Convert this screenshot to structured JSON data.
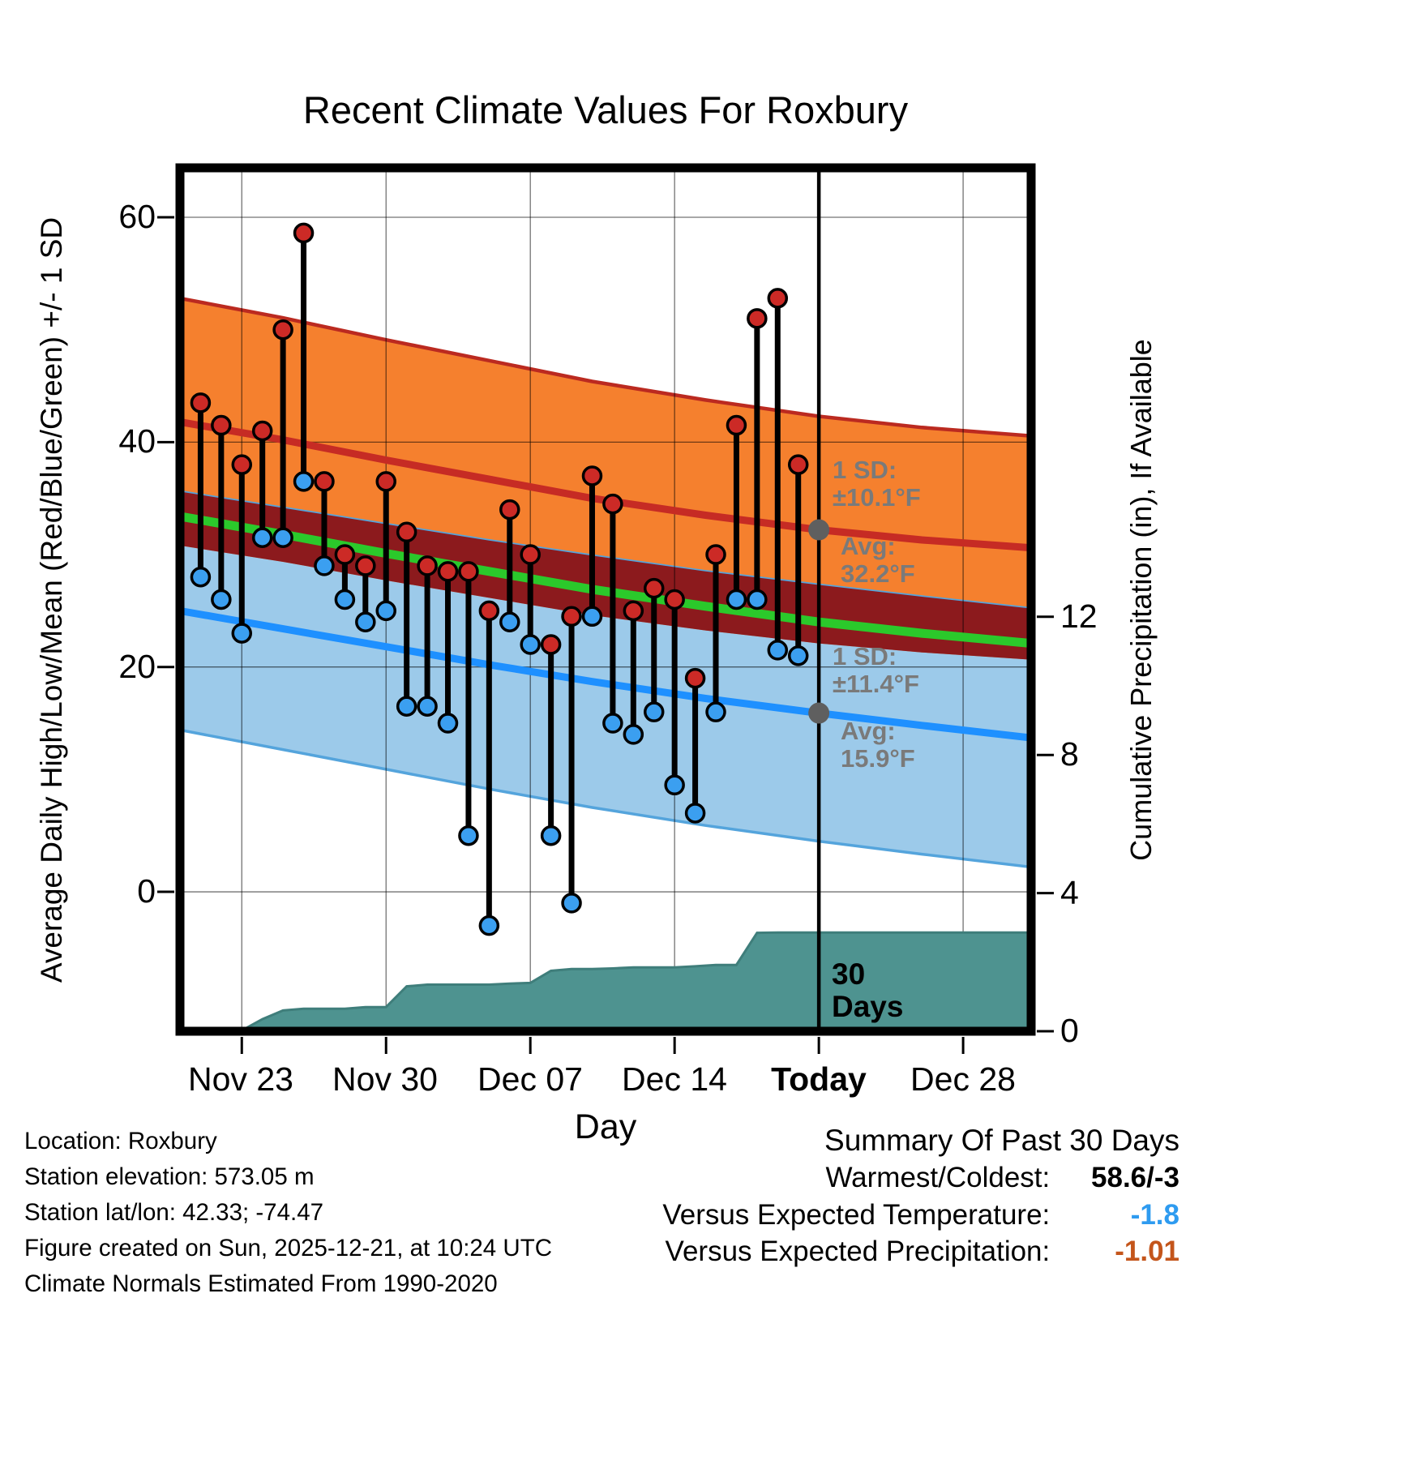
{
  "chart_data": {
    "type": "line",
    "title": "Recent Climate Values For Roxbury",
    "xlabel": "Day",
    "ylabel_left": "Average Daily High/Low/Mean (Red/Blue/Green) +/- 1 SD",
    "ylabel_right": "Cumulative Precipitation (in), If Available",
    "x_range_days": [
      -1,
      40.3
    ],
    "temp_range": [
      -12.4,
      64.4
    ],
    "precip_range": [
      0,
      25
    ],
    "temp_ticks": [
      0,
      20,
      40,
      60
    ],
    "precip_ticks": [
      0,
      4,
      8,
      12
    ],
    "x_ticks": [
      {
        "day": 2,
        "label": "Nov 23",
        "bold": false
      },
      {
        "day": 9,
        "label": "Nov 30",
        "bold": false
      },
      {
        "day": 16,
        "label": "Dec 07",
        "bold": false
      },
      {
        "day": 23,
        "label": "Dec 14",
        "bold": false
      },
      {
        "day": 30,
        "label": "Today",
        "bold": true
      },
      {
        "day": 37,
        "label": "Dec 28",
        "bold": false
      }
    ],
    "today_day": 30,
    "daily": {
      "dates": [
        "Nov 21",
        "Nov 22",
        "Nov 23",
        "Nov 24",
        "Nov 25",
        "Nov 26",
        "Nov 27",
        "Nov 28",
        "Nov 29",
        "Nov 30",
        "Dec 01",
        "Dec 02",
        "Dec 03",
        "Dec 04",
        "Dec 05",
        "Dec 06",
        "Dec 07",
        "Dec 08",
        "Dec 09",
        "Dec 10",
        "Dec 11",
        "Dec 12",
        "Dec 13",
        "Dec 14",
        "Dec 15",
        "Dec 16",
        "Dec 17",
        "Dec 18",
        "Dec 19",
        "Dec 20"
      ],
      "high": [
        43.5,
        41.5,
        38,
        41,
        50,
        58.6,
        36.5,
        30,
        29,
        36.5,
        32,
        29,
        28.5,
        28.5,
        25,
        34,
        30,
        22,
        24.5,
        37,
        34.5,
        25,
        27,
        26,
        19,
        30,
        41.5,
        51,
        52.8,
        38
      ],
      "low": [
        28,
        26,
        23,
        31.5,
        31.5,
        36.5,
        29,
        26,
        24,
        25,
        16.5,
        16.5,
        15,
        5,
        -3,
        24,
        22,
        5,
        -1,
        24.5,
        15,
        14,
        16,
        9.5,
        7,
        16,
        26,
        26,
        21.5,
        21
      ]
    },
    "normals": {
      "x_days": [
        -1,
        4,
        9,
        14,
        19,
        24.5,
        30,
        35,
        40.3
      ],
      "avg_high": [
        41.8,
        40.2,
        38.4,
        36.7,
        35.0,
        33.5,
        32.2,
        31.3,
        30.6
      ],
      "sd_high": [
        11.0,
        10.85,
        10.7,
        10.55,
        10.4,
        10.25,
        10.1,
        10.0,
        9.95
      ],
      "avg_low": [
        25.0,
        23.4,
        21.8,
        20.2,
        18.7,
        17.2,
        15.9,
        14.8,
        13.7
      ],
      "sd_low": [
        10.6,
        10.75,
        10.9,
        11.05,
        11.2,
        11.3,
        11.4,
        11.45,
        11.5
      ],
      "mean": [
        33.4,
        31.8,
        30.1,
        28.5,
        26.9,
        25.4,
        24.0,
        23.0,
        22.1
      ],
      "today_avg_high": 32.2,
      "today_sd_high": 10.1,
      "today_avg_low": 15.9,
      "today_sd_low": 11.4
    },
    "precip_cumulative": {
      "x_days": [
        0,
        1,
        2,
        3,
        4,
        5,
        6,
        7,
        8,
        9,
        10,
        11,
        12,
        13,
        14,
        15,
        16,
        17,
        18,
        19,
        20,
        21,
        22,
        23,
        24,
        25,
        26,
        27,
        28,
        29
      ],
      "values_in": [
        0,
        0,
        0.02,
        0.35,
        0.6,
        0.65,
        0.65,
        0.65,
        0.7,
        0.7,
        1.3,
        1.35,
        1.35,
        1.35,
        1.35,
        1.38,
        1.4,
        1.75,
        1.8,
        1.8,
        1.82,
        1.85,
        1.85,
        1.85,
        1.88,
        1.92,
        1.92,
        2.85,
        2.86,
        2.86
      ],
      "extends_to_day": 40.3
    },
    "annotations": {
      "high": {
        "sd_label": "1 SD:",
        "sd_value": "±10.1°F",
        "avg_label": "Avg:",
        "avg_value": "32.2°F"
      },
      "low": {
        "sd_label": "1 SD:",
        "sd_value": "±11.4°F",
        "avg_label": "Avg:",
        "avg_value": "15.9°F"
      },
      "precip_window_line1": "30",
      "precip_window_line2": "Days"
    },
    "colors": {
      "high_band": "#F5802E",
      "band_edge_top": "#BB2A20",
      "high_line": "#C62B24",
      "overlap_band": "#8C1A1D",
      "mean_line": "#2BC92B",
      "low_band": "#9CCAEA",
      "low_band_edge": "#54A4DC",
      "low_line": "#1E90FF",
      "high_dot": "#CC2A26",
      "low_dot": "#3B9FF0",
      "precip_area": "#4E9390",
      "precip_edge": "#3F7E7B",
      "annotation_text": "#7a7a7a",
      "annotation_dot": "#5f5f5f"
    }
  },
  "footer": {
    "line1": "Location: Roxbury",
    "line2": "Station elevation: 573.05 m",
    "line3": "Station lat/lon: 42.33; -74.47",
    "line4": "Figure created on Sun, 2025-12-21, at 10:24 UTC",
    "line5": "Climate Normals Estimated From 1990-2020"
  },
  "summary": {
    "title": "Summary Of Past 30 Days",
    "rows": [
      {
        "label": "Warmest/Coldest:",
        "value": "58.6/-3",
        "color": "#000000"
      },
      {
        "label": "Versus Expected Temperature:",
        "value": "-1.8",
        "color": "#2E9BF0"
      },
      {
        "label": "Versus Expected Precipitation:",
        "value": "-1.01",
        "color": "#C4551B"
      }
    ]
  }
}
